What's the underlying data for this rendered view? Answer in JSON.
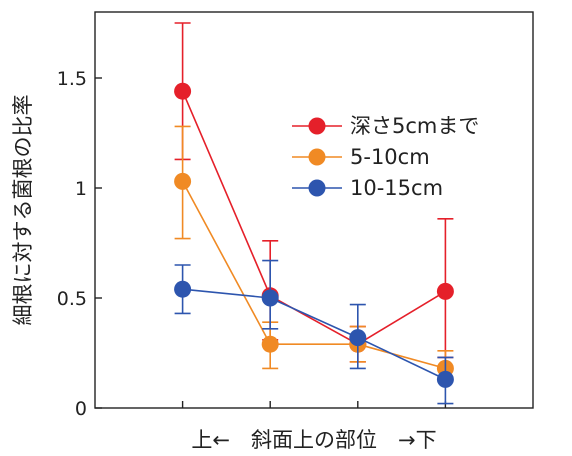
{
  "chart_data": {
    "type": "line",
    "xlabel": "上←　斜面上の部位　→下",
    "ylabel": "細根に対する菌根の比率",
    "ylim": [
      0,
      1.8
    ],
    "yticks": [
      "0",
      "0.5",
      "1",
      "1.5"
    ],
    "ytick_values": [
      0,
      0.5,
      1,
      1.5
    ],
    "x": [
      1,
      2,
      3,
      4
    ],
    "xlim": [
      0,
      5
    ],
    "legend_position": "upper-right",
    "grid": false,
    "series": [
      {
        "name": "深さ5cmまで",
        "color": "#e5202a",
        "values": [
          1.44,
          0.51,
          0.29,
          0.53
        ],
        "err_low": [
          0.31,
          0.2,
          0.08,
          0.3
        ],
        "err_high": [
          0.31,
          0.25,
          0.08,
          0.33
        ]
      },
      {
        "name": "5-10cm",
        "color": "#f08a24",
        "values": [
          1.03,
          0.29,
          0.29,
          0.18
        ],
        "err_low": [
          0.26,
          0.11,
          0.08,
          0.05
        ],
        "err_high": [
          0.25,
          0.1,
          0.08,
          0.08
        ]
      },
      {
        "name": "10-15cm",
        "color": "#2d55ae",
        "values": [
          0.54,
          0.5,
          0.32,
          0.13
        ],
        "err_low": [
          0.11,
          0.14,
          0.14,
          0.11
        ],
        "err_high": [
          0.11,
          0.17,
          0.15,
          0.1
        ]
      }
    ]
  }
}
